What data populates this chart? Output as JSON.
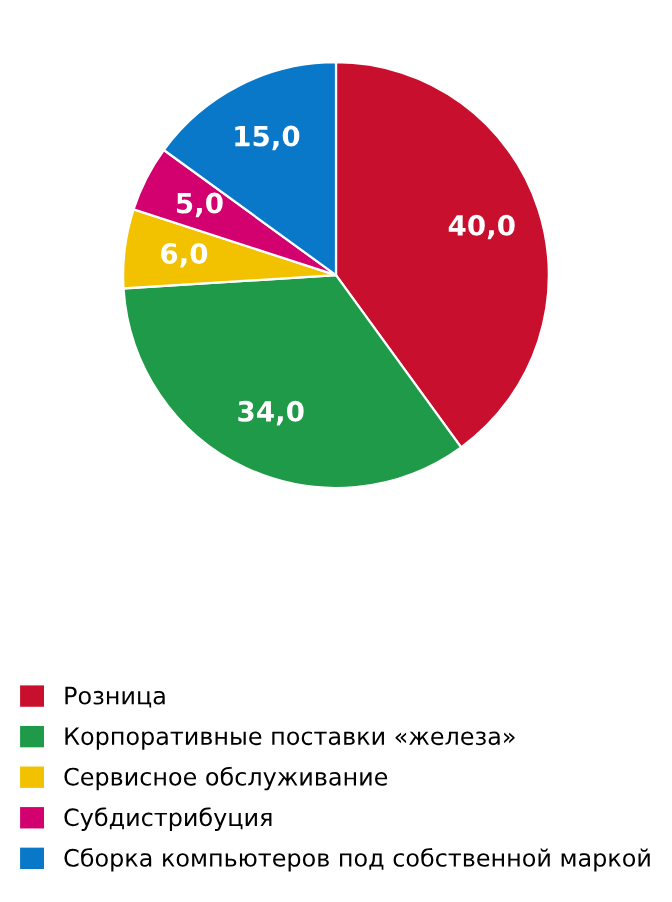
{
  "chart_data": {
    "type": "pie",
    "categories": [
      "Розница",
      "Корпоративные поставки «железа»",
      "Сервисное обслуживание",
      "Субдистрибуция",
      "Сборка компьютеров под собственной маркой"
    ],
    "values": [
      40,
      34,
      6,
      5,
      15
    ],
    "value_labels": [
      "40,0",
      "34,0",
      "6,0",
      "5,0",
      "15,0"
    ],
    "colors": [
      "#c8102e",
      "#1f9a48",
      "#f2c200",
      "#d3006f",
      "#0a78c8"
    ],
    "legend": "bottom"
  }
}
